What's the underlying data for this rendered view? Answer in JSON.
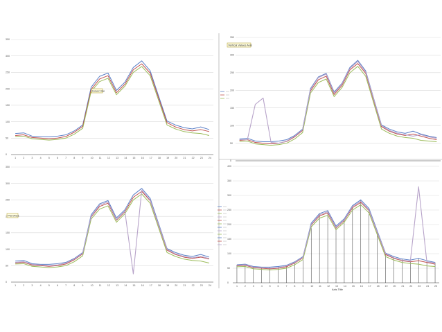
{
  "colors": {
    "background": "#ffffff",
    "grid": "#d9d9d9",
    "series": [
      "#5b7fc7",
      "#c0504d",
      "#9bbb59",
      "#8064a2",
      "#e6a33a",
      "#4bacc6"
    ],
    "spike": "#b7a3c9"
  },
  "chart_data": [
    {
      "type": "line",
      "note": "Hover line",
      "x": [
        1,
        2,
        3,
        4,
        5,
        6,
        7,
        8,
        9,
        10,
        11,
        12,
        13,
        14,
        15,
        16,
        17,
        18,
        19,
        20,
        21,
        22,
        23,
        24
      ],
      "xticks": [
        "1",
        "2",
        "3",
        "4",
        "5",
        "6",
        "7",
        "8",
        "9",
        "10",
        "11",
        "12",
        "13",
        "14",
        "15",
        "16",
        "17",
        "18",
        "19",
        "20",
        "21",
        "22",
        "23",
        "24"
      ],
      "ylim": [
        0,
        350
      ],
      "yticks": [
        "0",
        "50",
        "100",
        "150",
        "200",
        "250",
        "300",
        "350"
      ],
      "grid": true,
      "series": [
        {
          "values": [
            64,
            66,
            56,
            54,
            54,
            56,
            60,
            72,
            90,
            205,
            238,
            248,
            195,
            220,
            265,
            285,
            255,
            178,
            102,
            90,
            82,
            78,
            84,
            76
          ]
        },
        {
          "values": [
            58,
            60,
            52,
            50,
            48,
            50,
            55,
            68,
            86,
            198,
            230,
            240,
            188,
            214,
            258,
            276,
            248,
            172,
            97,
            84,
            76,
            72,
            76,
            70
          ]
        },
        {
          "values": [
            55,
            56,
            48,
            46,
            44,
            46,
            50,
            62,
            80,
            192,
            222,
            232,
            182,
            208,
            250,
            268,
            240,
            165,
            90,
            78,
            70,
            66,
            64,
            58
          ]
        }
      ]
    },
    {
      "type": "line",
      "note": "Vertical Values Axis",
      "x": [
        1,
        2,
        3,
        4,
        5,
        6,
        7,
        8,
        9,
        10,
        11,
        12,
        13,
        14,
        15,
        16,
        17,
        18,
        19,
        20,
        21,
        22,
        23,
        24,
        25,
        26
      ],
      "ylim": [
        0,
        350
      ],
      "yticks": [
        "0",
        "50",
        "100",
        "150",
        "200",
        "250",
        "300",
        "350"
      ],
      "grid": true,
      "legend": "left",
      "series": [
        {
          "values": [
            62,
            64,
            56,
            54,
            54,
            56,
            60,
            72,
            90,
            205,
            238,
            248,
            195,
            220,
            265,
            285,
            255,
            178,
            102,
            90,
            82,
            78,
            84,
            76,
            70,
            66
          ]
        },
        {
          "values": [
            58,
            60,
            52,
            50,
            48,
            50,
            55,
            68,
            86,
            198,
            230,
            240,
            188,
            214,
            258,
            276,
            248,
            172,
            97,
            84,
            76,
            72,
            76,
            70,
            64,
            60
          ]
        },
        {
          "values": [
            55,
            56,
            48,
            46,
            44,
            46,
            50,
            62,
            80,
            192,
            222,
            232,
            182,
            208,
            250,
            268,
            240,
            165,
            90,
            78,
            70,
            66,
            64,
            58,
            56,
            54
          ]
        },
        {
          "values": [
            60,
            60,
            160,
            178,
            52,
            50,
            56,
            70,
            88,
            202,
            236,
            246,
            192,
            218,
            262,
            282,
            252,
            176,
            100,
            86,
            78,
            74,
            70,
            74,
            68,
            64
          ]
        }
      ]
    },
    {
      "type": "line",
      "note": "Plot Area",
      "x": [
        1,
        2,
        3,
        4,
        5,
        6,
        7,
        8,
        9,
        10,
        11,
        12,
        13,
        14,
        15,
        16,
        17,
        18,
        19,
        20,
        21,
        22,
        23,
        24
      ],
      "xticks": [
        "1",
        "2",
        "3",
        "4",
        "5",
        "6",
        "7",
        "8",
        "9",
        "10",
        "11",
        "12",
        "13",
        "14",
        "15",
        "16",
        "17",
        "18",
        "19",
        "20",
        "21",
        "22",
        "23",
        "24"
      ],
      "ylim": [
        0,
        350
      ],
      "yticks": [
        "0",
        "50",
        "100",
        "150",
        "200",
        "250",
        "300",
        "350"
      ],
      "grid": true,
      "series": [
        {
          "values": [
            64,
            66,
            56,
            54,
            54,
            56,
            60,
            72,
            90,
            205,
            238,
            248,
            195,
            220,
            265,
            285,
            255,
            178,
            102,
            90,
            82,
            78,
            84,
            76
          ]
        },
        {
          "values": [
            58,
            60,
            52,
            50,
            48,
            50,
            55,
            68,
            86,
            198,
            230,
            240,
            188,
            214,
            258,
            276,
            248,
            172,
            97,
            84,
            76,
            72,
            76,
            70
          ]
        },
        {
          "values": [
            55,
            56,
            48,
            46,
            44,
            46,
            50,
            62,
            80,
            192,
            222,
            232,
            182,
            208,
            250,
            268,
            240,
            165,
            90,
            78,
            70,
            66,
            64,
            58
          ]
        },
        {
          "values": [
            60,
            62,
            54,
            52,
            50,
            52,
            58,
            70,
            88,
            200,
            234,
            244,
            190,
            216,
            25,
            280,
            250,
            174,
            100,
            86,
            78,
            74,
            78,
            72
          ]
        }
      ]
    },
    {
      "type": "line",
      "xlabel": "Axis Title",
      "x": [
        1,
        2,
        3,
        4,
        5,
        6,
        7,
        8,
        9,
        10,
        11,
        12,
        13,
        14,
        15,
        16,
        17,
        18,
        19,
        20,
        21,
        22,
        23,
        24,
        25
      ],
      "xticks": [
        "1",
        "2",
        "3",
        "4",
        "5",
        "6",
        "7",
        "8",
        "9",
        "10",
        "11",
        "12",
        "13",
        "14",
        "15",
        "16",
        "17",
        "18",
        "19",
        "20",
        "21",
        "22",
        "23",
        "24",
        "25"
      ],
      "ylim": [
        0,
        400
      ],
      "yticks": [
        "0",
        "50",
        "100",
        "150",
        "200",
        "250",
        "300",
        "350",
        "400"
      ],
      "grid": true,
      "drop_lines": true,
      "legend": "left",
      "series": [
        {
          "values": [
            62,
            64,
            56,
            54,
            54,
            56,
            60,
            72,
            90,
            205,
            238,
            248,
            195,
            220,
            265,
            285,
            255,
            178,
            102,
            90,
            82,
            78,
            84,
            76,
            70
          ]
        },
        {
          "values": [
            58,
            60,
            52,
            50,
            48,
            50,
            55,
            68,
            86,
            198,
            230,
            240,
            188,
            214,
            258,
            276,
            248,
            172,
            97,
            84,
            76,
            72,
            76,
            70,
            64
          ]
        },
        {
          "values": [
            55,
            56,
            48,
            46,
            44,
            46,
            50,
            62,
            80,
            192,
            222,
            232,
            182,
            208,
            250,
            268,
            240,
            165,
            90,
            78,
            70,
            66,
            64,
            58,
            56
          ]
        },
        {
          "values": [
            60,
            62,
            54,
            52,
            50,
            52,
            58,
            70,
            88,
            200,
            234,
            244,
            190,
            216,
            262,
            280,
            250,
            174,
            100,
            86,
            78,
            74,
            330,
            72,
            68
          ]
        }
      ]
    }
  ]
}
